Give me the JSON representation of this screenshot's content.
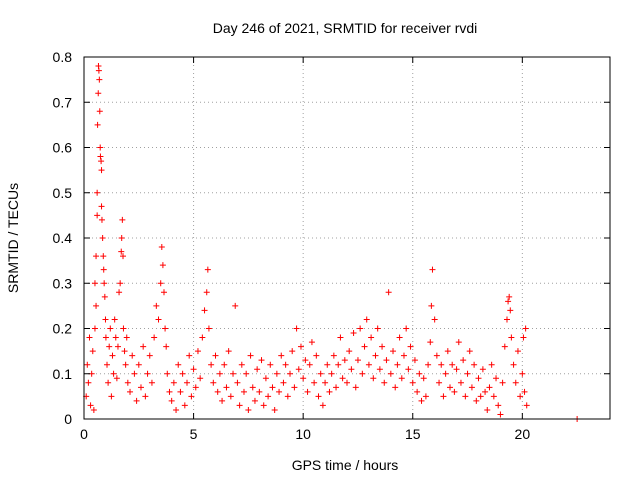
{
  "chart_data": {
    "type": "scatter",
    "title": "Day 246 of 2021, SRMTID for receiver rvdi",
    "xlabel": "GPS time / hours",
    "ylabel": "SRMTID / TECUs",
    "xlim": [
      0,
      24
    ],
    "ylim": [
      0,
      0.8
    ],
    "xticks": [
      0,
      5,
      10,
      15,
      20
    ],
    "yticks": [
      0,
      0.1,
      0.2,
      0.3,
      0.4,
      0.5,
      0.6,
      0.7,
      0.8
    ],
    "xtick_labels": [
      "0",
      "5",
      "10",
      "15",
      "20"
    ],
    "ytick_labels": [
      "0",
      "0.1",
      "0.2",
      "0.3",
      "0.4",
      "0.5",
      "0.6",
      "0.7",
      "0.8"
    ],
    "grid": true,
    "marker": "+",
    "color": "#ff0000",
    "series": [
      {
        "name": "SRMTID",
        "points": [
          [
            0.1,
            0.05
          ],
          [
            0.15,
            0.12
          ],
          [
            0.2,
            0.08
          ],
          [
            0.25,
            0.18
          ],
          [
            0.3,
            0.03
          ],
          [
            0.35,
            0.1
          ],
          [
            0.4,
            0.15
          ],
          [
            0.45,
            0.02
          ],
          [
            0.5,
            0.2
          ],
          [
            0.5,
            0.3
          ],
          [
            0.55,
            0.36
          ],
          [
            0.55,
            0.25
          ],
          [
            0.6,
            0.45
          ],
          [
            0.6,
            0.5
          ],
          [
            0.62,
            0.65
          ],
          [
            0.65,
            0.72
          ],
          [
            0.66,
            0.78
          ],
          [
            0.68,
            0.77
          ],
          [
            0.7,
            0.75
          ],
          [
            0.72,
            0.68
          ],
          [
            0.74,
            0.6
          ],
          [
            0.75,
            0.58
          ],
          [
            0.78,
            0.57
          ],
          [
            0.8,
            0.55
          ],
          [
            0.8,
            0.47
          ],
          [
            0.82,
            0.44
          ],
          [
            0.85,
            0.4
          ],
          [
            0.88,
            0.36
          ],
          [
            0.9,
            0.33
          ],
          [
            0.92,
            0.3
          ],
          [
            0.95,
            0.27
          ],
          [
            0.98,
            0.22
          ],
          [
            1.0,
            0.18
          ],
          [
            1.05,
            0.12
          ],
          [
            1.1,
            0.08
          ],
          [
            1.15,
            0.16
          ],
          [
            1.2,
            0.2
          ],
          [
            1.25,
            0.05
          ],
          [
            1.3,
            0.14
          ],
          [
            1.35,
            0.1
          ],
          [
            1.4,
            0.22
          ],
          [
            1.45,
            0.18
          ],
          [
            1.5,
            0.09
          ],
          [
            1.55,
            0.16
          ],
          [
            1.6,
            0.28
          ],
          [
            1.65,
            0.3
          ],
          [
            1.7,
            0.37
          ],
          [
            1.72,
            0.4
          ],
          [
            1.75,
            0.44
          ],
          [
            1.78,
            0.36
          ],
          [
            1.8,
            0.2
          ],
          [
            1.85,
            0.15
          ],
          [
            1.9,
            0.12
          ],
          [
            1.95,
            0.18
          ],
          [
            2.0,
            0.08
          ],
          [
            2.1,
            0.06
          ],
          [
            2.2,
            0.14
          ],
          [
            2.3,
            0.1
          ],
          [
            2.4,
            0.04
          ],
          [
            2.5,
            0.12
          ],
          [
            2.6,
            0.07
          ],
          [
            2.7,
            0.16
          ],
          [
            2.8,
            0.05
          ],
          [
            2.9,
            0.1
          ],
          [
            3.0,
            0.14
          ],
          [
            3.1,
            0.08
          ],
          [
            3.2,
            0.18
          ],
          [
            3.3,
            0.25
          ],
          [
            3.4,
            0.22
          ],
          [
            3.5,
            0.3
          ],
          [
            3.55,
            0.38
          ],
          [
            3.6,
            0.34
          ],
          [
            3.65,
            0.28
          ],
          [
            3.7,
            0.2
          ],
          [
            3.75,
            0.16
          ],
          [
            3.8,
            0.1
          ],
          [
            3.9,
            0.06
          ],
          [
            4.0,
            0.04
          ],
          [
            4.1,
            0.08
          ],
          [
            4.2,
            0.02
          ],
          [
            4.3,
            0.12
          ],
          [
            4.4,
            0.06
          ],
          [
            4.5,
            0.1
          ],
          [
            4.6,
            0.03
          ],
          [
            4.7,
            0.08
          ],
          [
            4.8,
            0.14
          ],
          [
            4.9,
            0.05
          ],
          [
            5.0,
            0.11
          ],
          [
            5.1,
            0.07
          ],
          [
            5.2,
            0.15
          ],
          [
            5.3,
            0.09
          ],
          [
            5.4,
            0.18
          ],
          [
            5.5,
            0.24
          ],
          [
            5.6,
            0.28
          ],
          [
            5.65,
            0.33
          ],
          [
            5.7,
            0.2
          ],
          [
            5.8,
            0.12
          ],
          [
            5.9,
            0.08
          ],
          [
            6.0,
            0.14
          ],
          [
            6.1,
            0.06
          ],
          [
            6.2,
            0.1
          ],
          [
            6.3,
            0.04
          ],
          [
            6.4,
            0.12
          ],
          [
            6.5,
            0.07
          ],
          [
            6.6,
            0.15
          ],
          [
            6.7,
            0.05
          ],
          [
            6.8,
            0.1
          ],
          [
            6.9,
            0.25
          ],
          [
            7.0,
            0.08
          ],
          [
            7.1,
            0.03
          ],
          [
            7.2,
            0.12
          ],
          [
            7.3,
            0.06
          ],
          [
            7.4,
            0.1
          ],
          [
            7.5,
            0.02
          ],
          [
            7.6,
            0.14
          ],
          [
            7.7,
            0.07
          ],
          [
            7.8,
            0.04
          ],
          [
            7.9,
            0.11
          ],
          [
            8.0,
            0.06
          ],
          [
            8.1,
            0.13
          ],
          [
            8.2,
            0.03
          ],
          [
            8.3,
            0.09
          ],
          [
            8.4,
            0.05
          ],
          [
            8.5,
            0.12
          ],
          [
            8.6,
            0.07
          ],
          [
            8.7,
            0.02
          ],
          [
            8.8,
            0.1
          ],
          [
            8.9,
            0.06
          ],
          [
            9.0,
            0.14
          ],
          [
            9.1,
            0.08
          ],
          [
            9.2,
            0.12
          ],
          [
            9.3,
            0.05
          ],
          [
            9.4,
            0.1
          ],
          [
            9.5,
            0.15
          ],
          [
            9.6,
            0.07
          ],
          [
            9.7,
            0.2
          ],
          [
            9.8,
            0.11
          ],
          [
            9.9,
            0.16
          ],
          [
            10.0,
            0.09
          ],
          [
            10.1,
            0.13
          ],
          [
            10.2,
            0.06
          ],
          [
            10.3,
            0.12
          ],
          [
            10.4,
            0.17
          ],
          [
            10.5,
            0.08
          ],
          [
            10.6,
            0.14
          ],
          [
            10.7,
            0.05
          ],
          [
            10.8,
            0.1
          ],
          [
            10.9,
            0.03
          ],
          [
            11.0,
            0.08
          ],
          [
            11.1,
            0.12
          ],
          [
            11.2,
            0.06
          ],
          [
            11.3,
            0.1
          ],
          [
            11.4,
            0.14
          ],
          [
            11.5,
            0.07
          ],
          [
            11.6,
            0.12
          ],
          [
            11.7,
            0.18
          ],
          [
            11.8,
            0.09
          ],
          [
            11.9,
            0.13
          ],
          [
            12.0,
            0.08
          ],
          [
            12.1,
            0.15
          ],
          [
            12.2,
            0.11
          ],
          [
            12.3,
            0.19
          ],
          [
            12.4,
            0.07
          ],
          [
            12.5,
            0.13
          ],
          [
            12.6,
            0.2
          ],
          [
            12.7,
            0.1
          ],
          [
            12.8,
            0.16
          ],
          [
            12.9,
            0.22
          ],
          [
            13.0,
            0.12
          ],
          [
            13.1,
            0.18
          ],
          [
            13.2,
            0.09
          ],
          [
            13.3,
            0.14
          ],
          [
            13.4,
            0.2
          ],
          [
            13.5,
            0.11
          ],
          [
            13.6,
            0.16
          ],
          [
            13.7,
            0.08
          ],
          [
            13.8,
            0.13
          ],
          [
            13.9,
            0.28
          ],
          [
            14.0,
            0.1
          ],
          [
            14.1,
            0.15
          ],
          [
            14.2,
            0.07
          ],
          [
            14.3,
            0.12
          ],
          [
            14.4,
            0.18
          ],
          [
            14.5,
            0.09
          ],
          [
            14.6,
            0.14
          ],
          [
            14.7,
            0.2
          ],
          [
            14.8,
            0.11
          ],
          [
            14.9,
            0.16
          ],
          [
            15.0,
            0.08
          ],
          [
            15.1,
            0.13
          ],
          [
            15.2,
            0.06
          ],
          [
            15.3,
            0.1
          ],
          [
            15.4,
            0.04
          ],
          [
            15.5,
            0.09
          ],
          [
            15.6,
            0.05
          ],
          [
            15.7,
            0.12
          ],
          [
            15.8,
            0.17
          ],
          [
            15.85,
            0.25
          ],
          [
            15.9,
            0.33
          ],
          [
            16.0,
            0.22
          ],
          [
            16.1,
            0.14
          ],
          [
            16.2,
            0.08
          ],
          [
            16.3,
            0.12
          ],
          [
            16.4,
            0.05
          ],
          [
            16.5,
            0.1
          ],
          [
            16.6,
            0.15
          ],
          [
            16.7,
            0.07
          ],
          [
            16.8,
            0.12
          ],
          [
            16.9,
            0.06
          ],
          [
            17.0,
            0.11
          ],
          [
            17.1,
            0.17
          ],
          [
            17.2,
            0.08
          ],
          [
            17.3,
            0.13
          ],
          [
            17.4,
            0.05
          ],
          [
            17.5,
            0.1
          ],
          [
            17.6,
            0.15
          ],
          [
            17.7,
            0.07
          ],
          [
            17.8,
            0.12
          ],
          [
            17.9,
            0.04
          ],
          [
            18.0,
            0.09
          ],
          [
            18.1,
            0.05
          ],
          [
            18.2,
            0.11
          ],
          [
            18.3,
            0.06
          ],
          [
            18.4,
            0.02
          ],
          [
            18.5,
            0.07
          ],
          [
            18.6,
            0.12
          ],
          [
            18.7,
            0.05
          ],
          [
            18.8,
            0.09
          ],
          [
            18.9,
            0.03
          ],
          [
            19.0,
            0.01
          ],
          [
            19.1,
            0.08
          ],
          [
            19.2,
            0.16
          ],
          [
            19.3,
            0.22
          ],
          [
            19.35,
            0.26
          ],
          [
            19.4,
            0.27
          ],
          [
            19.45,
            0.24
          ],
          [
            19.5,
            0.18
          ],
          [
            19.6,
            0.12
          ],
          [
            19.7,
            0.08
          ],
          [
            19.8,
            0.15
          ],
          [
            19.9,
            0.05
          ],
          [
            20.0,
            0.1
          ],
          [
            20.05,
            0.18
          ],
          [
            20.1,
            0.06
          ],
          [
            20.15,
            0.2
          ],
          [
            20.2,
            0.03
          ],
          [
            22.5,
            0.0
          ]
        ]
      }
    ]
  }
}
